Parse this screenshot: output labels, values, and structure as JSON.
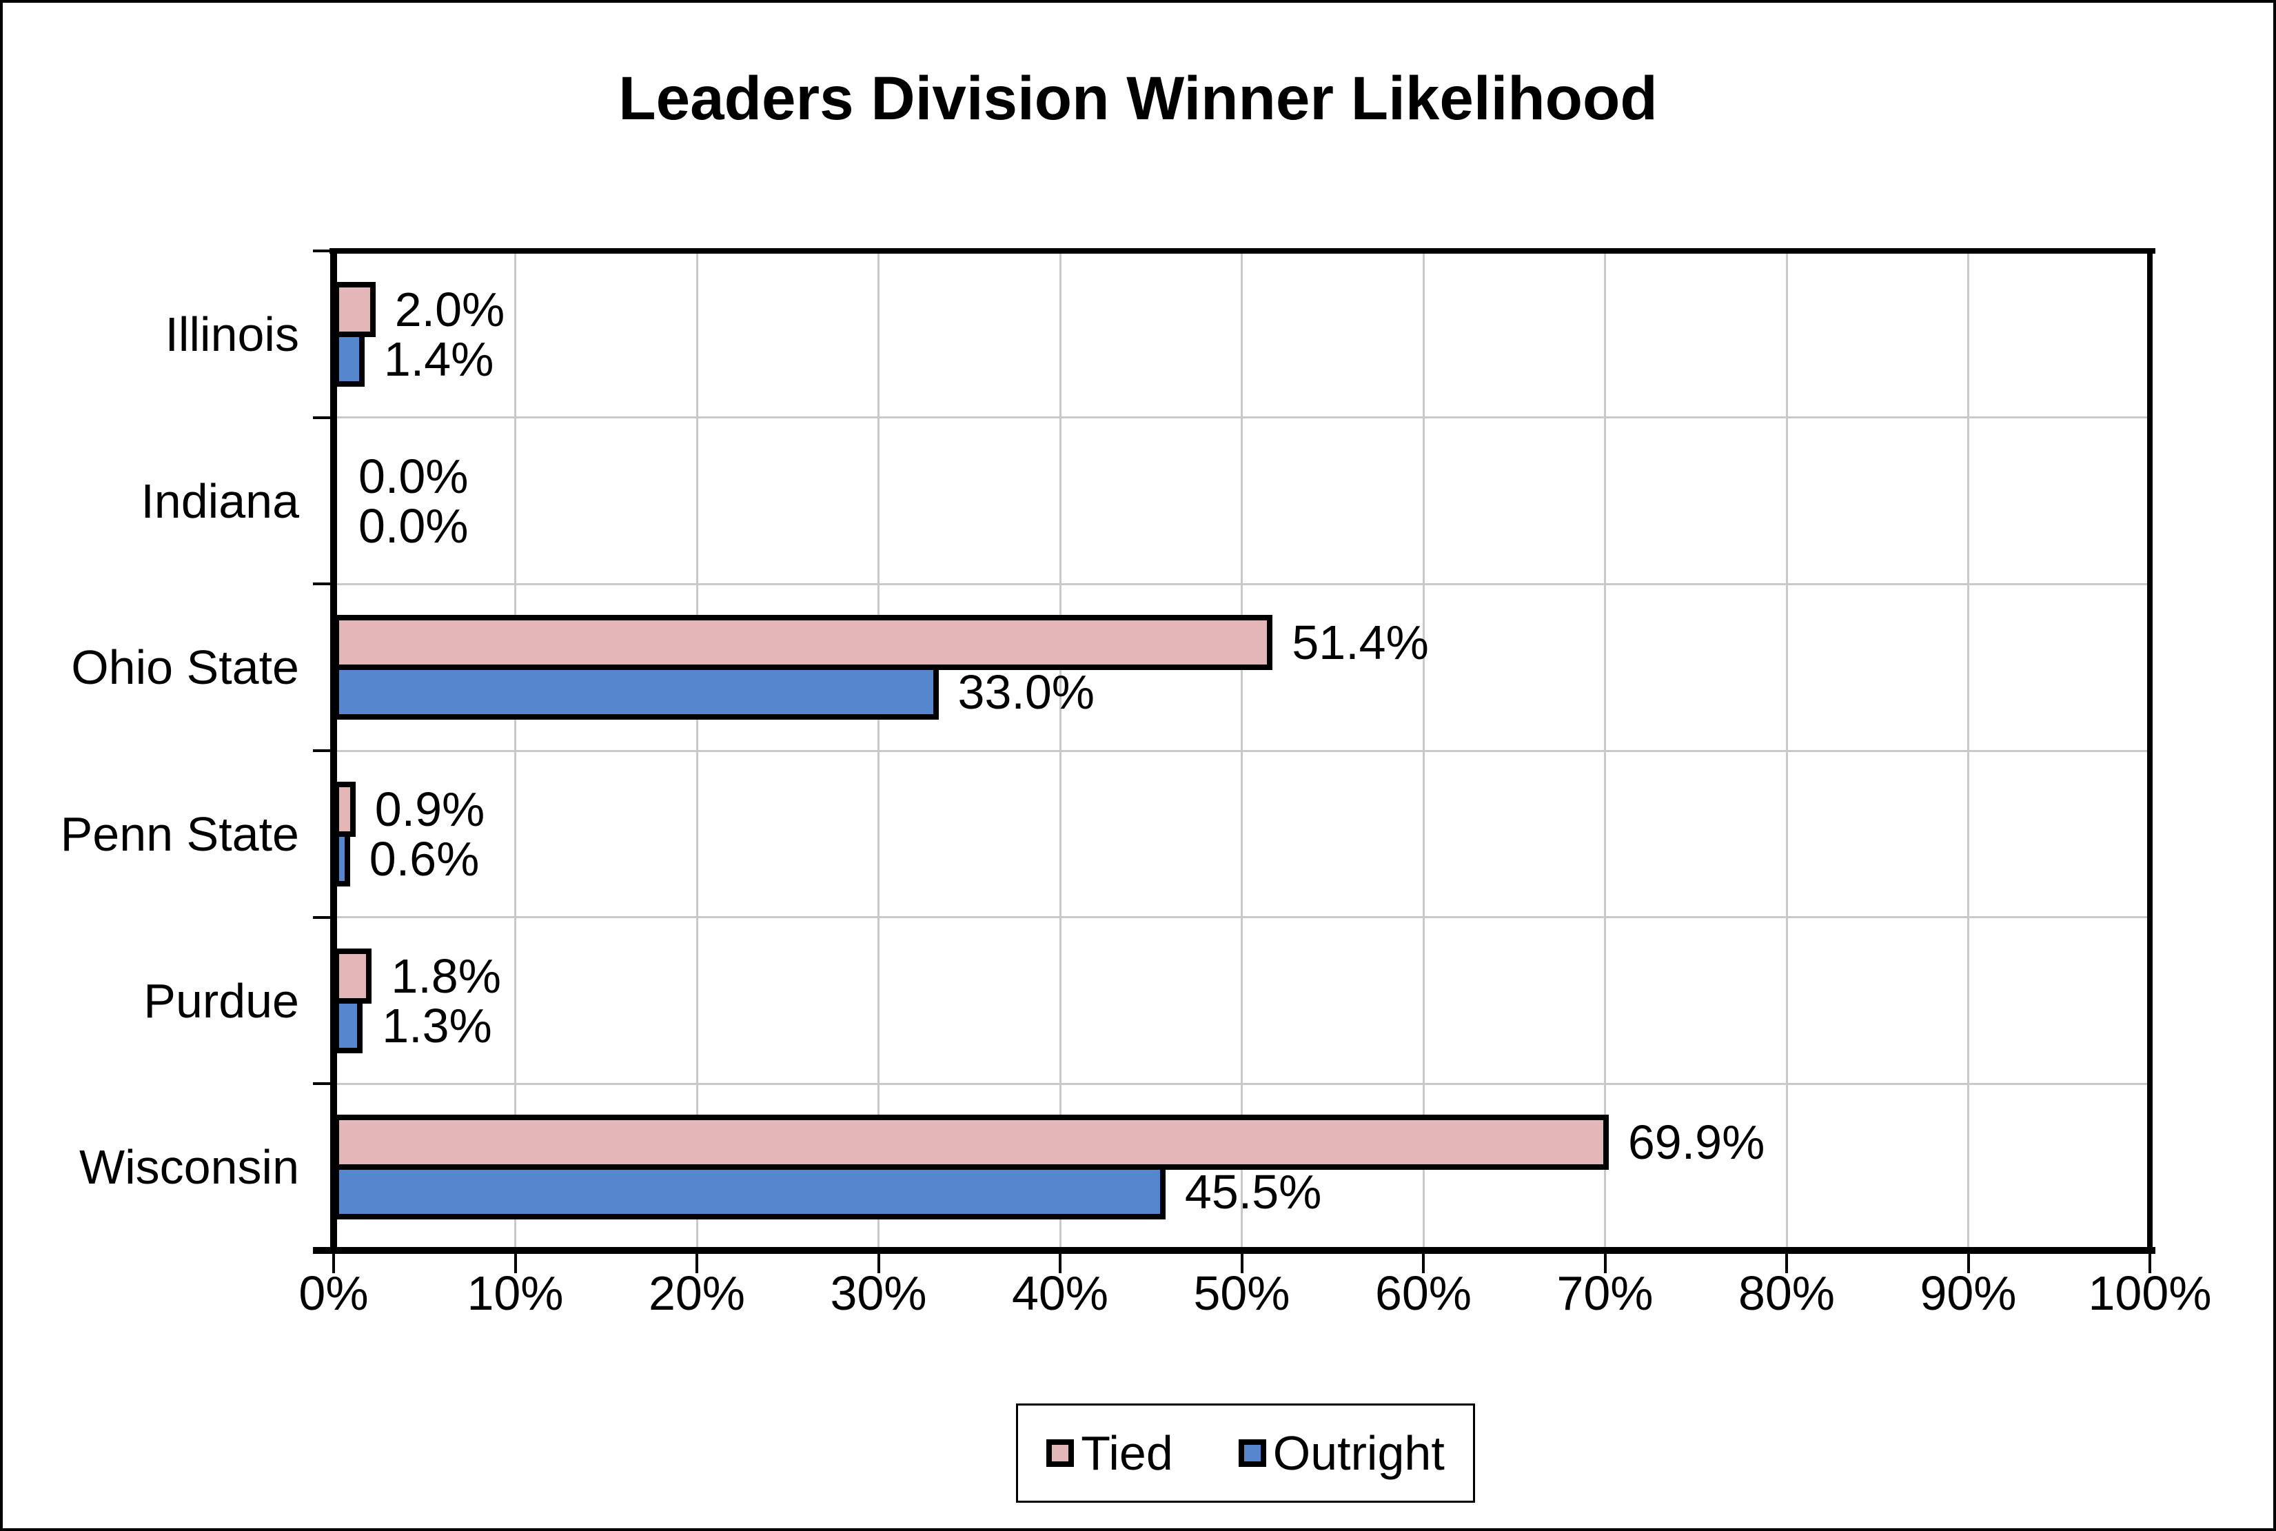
{
  "chart_data": {
    "type": "bar",
    "orientation": "horizontal",
    "title": "Leaders Division Winner Likelihood",
    "categories": [
      "Illinois",
      "Indiana",
      "Ohio State",
      "Penn State",
      "Purdue",
      "Wisconsin"
    ],
    "series": [
      {
        "name": "Tied",
        "color": "#E3B7B8",
        "values": [
          2.0,
          0.0,
          51.4,
          0.9,
          1.8,
          69.9
        ],
        "labels": [
          "2.0%",
          "0.0%",
          "51.4%",
          "0.9%",
          "1.8%",
          "69.9%"
        ]
      },
      {
        "name": "Outright",
        "color": "#5586CE",
        "values": [
          1.4,
          0.0,
          33.0,
          0.6,
          1.3,
          45.5
        ],
        "labels": [
          "1.4%",
          "0.0%",
          "33.0%",
          "0.6%",
          "1.3%",
          "45.5%"
        ]
      }
    ],
    "x_axis": {
      "min": 0,
      "max": 100,
      "tick_step": 10,
      "tick_labels": [
        "0%",
        "10%",
        "20%",
        "30%",
        "40%",
        "50%",
        "60%",
        "70%",
        "80%",
        "90%",
        "100%"
      ]
    },
    "grid": true,
    "legend_position": "bottom",
    "colors": {
      "gridline": "#C9C9C9",
      "bar_border": "#000000",
      "axis": "#000000",
      "background": "#FFFFFF"
    }
  }
}
